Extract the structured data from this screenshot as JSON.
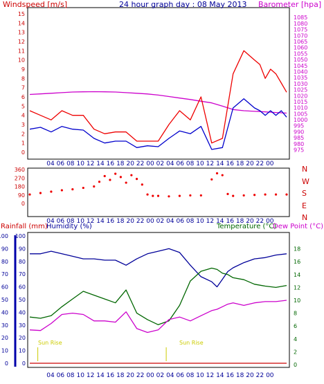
{
  "header": {
    "title": "24 hour graph day : 08 May 2013",
    "windspeed_label": "Windspeed [m/s]",
    "barometer_label": "Barometer [hpa]",
    "rainfall_label": "Rainfall (mm)",
    "humidity_label": "Humidity (%)",
    "temperature_label": "Temperature (°C)",
    "dewpoint_label": "Dew Point (°C)"
  },
  "colors": {
    "wind_avg": "#0000cc",
    "wind_gust": "#ee0000",
    "barometer": "#cc00cc",
    "wind_dir": "#ee0000",
    "humidity": "#000099",
    "temperature": "#006600",
    "dewpoint": "#cc00cc",
    "rainfall": "#cc0000",
    "label_red": "#cc0000",
    "label_blue": "#000099",
    "label_green": "#006600",
    "label_magenta": "#cc00cc",
    "sun_rise": "#cccc00"
  },
  "annotations": {
    "sun_rise_1": "Sun Rise",
    "sun_rise_2": "Sun Rise"
  },
  "chart_data": [
    {
      "type": "line",
      "panel": "wind",
      "x_ticks": [
        "04",
        "06",
        "08",
        "10",
        "12",
        "14",
        "16",
        "18",
        "20",
        "22",
        "00",
        "02",
        "04",
        "06",
        "08",
        "10",
        "12",
        "14",
        "16",
        "18",
        "20",
        "22",
        "00"
      ],
      "left_axis": {
        "label": "Windspeed [m/s]",
        "ylim": [
          0,
          15
        ],
        "ticks": [
          "0",
          "1",
          "2",
          "3",
          "4",
          "5",
          "6",
          "7",
          "8",
          "9",
          "10",
          "11",
          "12",
          "13",
          "14",
          "15"
        ]
      },
      "right_axis": {
        "label": "Barometer [hpa]",
        "ylim": [
          973,
          1088
        ],
        "ticks": [
          "975",
          "980",
          "985",
          "990",
          "995",
          "1000",
          "1005",
          "1010",
          "1015",
          "1020",
          "1025",
          "1030",
          "1035",
          "1040",
          "1045",
          "1050",
          "1055",
          "1060",
          "1065",
          "1070",
          "1075",
          "1080",
          "1085"
        ]
      },
      "hours": [
        0,
        2,
        4,
        6,
        8,
        10,
        12,
        14,
        16,
        18,
        20,
        22,
        24,
        26,
        28,
        30,
        32,
        34,
        36,
        38,
        40,
        42,
        43,
        44,
        45,
        46,
        47,
        48
      ],
      "series": [
        {
          "name": "Windspeed [m/s]",
          "axis": "left",
          "values": [
            2.5,
            2.7,
            2.2,
            2.8,
            2.5,
            2.4,
            1.5,
            1.0,
            1.2,
            1.2,
            0.5,
            0.7,
            0.6,
            1.5,
            2.3,
            2.0,
            2.8,
            0.3,
            0.5,
            4.8,
            5.8,
            4.8,
            4.5,
            4.0,
            4.5,
            4.0,
            4.5,
            3.8
          ]
        },
        {
          "name": "Wind gust",
          "axis": "left",
          "values": [
            4.5,
            4.0,
            3.5,
            4.5,
            4.0,
            4.0,
            2.5,
            2.0,
            2.2,
            2.2,
            1.2,
            1.2,
            1.2,
            3.0,
            4.5,
            3.5,
            6.0,
            1.0,
            1.5,
            8.5,
            11.0,
            10.0,
            9.5,
            8.0,
            9.0,
            8.5,
            7.5,
            6.5
          ]
        },
        {
          "name": "Barometer [hpa]",
          "axis": "right",
          "values": [
            1021,
            1021.5,
            1022,
            1022.5,
            1023,
            1023.2,
            1023.3,
            1023.2,
            1023,
            1022.5,
            1022,
            1021.4,
            1020.5,
            1019.3,
            1018,
            1016.8,
            1015.4,
            1014,
            1011.3,
            1008.5,
            1007.5,
            1007,
            1006.8,
            1006.5,
            1006.3,
            1006,
            1005.8,
            1005.5
          ]
        }
      ]
    },
    {
      "type": "scatter",
      "panel": "wind-direction",
      "x_ticks": [
        "04",
        "06",
        "08",
        "10",
        "12",
        "14",
        "16",
        "18",
        "20",
        "22",
        "00",
        "02",
        "04",
        "06",
        "08",
        "10",
        "12",
        "14",
        "16",
        "18",
        "20",
        "22",
        "00"
      ],
      "y_ticks": [
        "360",
        "270",
        "180",
        "90",
        "0"
      ],
      "compass": [
        "N",
        "W",
        "S",
        "E",
        "N"
      ],
      "ylim": [
        0,
        360
      ],
      "hours": [
        0,
        2,
        4,
        6,
        8,
        10,
        12,
        13,
        14,
        15,
        16,
        17,
        18,
        19,
        20,
        21,
        22,
        23,
        24,
        26,
        28,
        30,
        32,
        34,
        35,
        36,
        37,
        38,
        40,
        42,
        44,
        46,
        48
      ],
      "values": [
        95,
        110,
        125,
        140,
        150,
        165,
        180,
        230,
        290,
        250,
        315,
        280,
        220,
        300,
        260,
        200,
        95,
        80,
        80,
        75,
        80,
        85,
        85,
        255,
        320,
        300,
        100,
        80,
        85,
        90,
        95,
        95,
        95
      ]
    },
    {
      "type": "line",
      "panel": "temperature-humidity",
      "x_ticks": [
        "04",
        "06",
        "08",
        "10",
        "12",
        "14",
        "16",
        "18",
        "20",
        "22",
        "00",
        "02",
        "04",
        "06",
        "08",
        "10",
        "12",
        "14",
        "16",
        "18",
        "20",
        "22",
        "00"
      ],
      "left_axis": {
        "label": "Humidity (%)",
        "ylim": [
          0,
          100
        ],
        "ticks": [
          "0",
          "10",
          "20",
          "30",
          "40",
          "50",
          "60",
          "70",
          "80",
          "90",
          "100"
        ]
      },
      "left_axis_2": {
        "label": "Rainfall (mm)",
        "ticks": [
          "0",
          "10",
          "20",
          "30",
          "40",
          "50",
          "60",
          "70",
          "80",
          "90",
          "100"
        ]
      },
      "right_axis": {
        "label": "Temperature (°C)",
        "ylim": [
          0,
          20
        ],
        "ticks": [
          "0",
          "2",
          "4",
          "6",
          "8",
          "10",
          "12",
          "14",
          "16",
          "18"
        ]
      },
      "annotations": [
        "Sun Rise",
        "Sun Rise"
      ],
      "hours": [
        0,
        2,
        4,
        6,
        8,
        10,
        12,
        14,
        16,
        18,
        20,
        22,
        24,
        26,
        28,
        30,
        32,
        34,
        35,
        36,
        37,
        38,
        40,
        42,
        44,
        46,
        48
      ],
      "series": [
        {
          "name": "Humidity (%)",
          "axis": "left",
          "values": [
            86,
            86,
            88,
            86,
            84,
            82,
            82,
            81,
            81,
            77,
            82,
            86,
            88,
            90,
            87,
            77,
            68,
            64,
            60,
            66,
            72,
            75,
            79,
            82,
            83,
            85,
            86
          ]
        },
        {
          "name": "Temperature (°C)",
          "axis": "right",
          "values": [
            7.4,
            7.2,
            7.6,
            9.0,
            10.2,
            11.4,
            10.8,
            10.2,
            9.6,
            11.6,
            8.0,
            7.0,
            6.2,
            6.8,
            9.2,
            13.0,
            14.5,
            15.0,
            14.8,
            14.2,
            14.0,
            13.5,
            13.2,
            12.5,
            12.2,
            12.0,
            12.3
          ]
        },
        {
          "name": "Dew Point (°C)",
          "axis": "right",
          "values": [
            5.4,
            5.3,
            6.4,
            7.8,
            8.0,
            7.8,
            6.8,
            6.8,
            6.6,
            8.2,
            5.6,
            5.0,
            5.4,
            7.0,
            7.4,
            6.8,
            7.6,
            8.4,
            8.6,
            9.0,
            9.4,
            9.6,
            9.2,
            9.6,
            9.8,
            9.8,
            10.0
          ]
        },
        {
          "name": "Rainfall (mm)",
          "axis": "left",
          "values": [
            0,
            0,
            0,
            0,
            0,
            0,
            0,
            0,
            0,
            0,
            0,
            0,
            0,
            0,
            0,
            0,
            0,
            0,
            0,
            0,
            0,
            0,
            0,
            0,
            0,
            0,
            0
          ]
        }
      ]
    }
  ]
}
